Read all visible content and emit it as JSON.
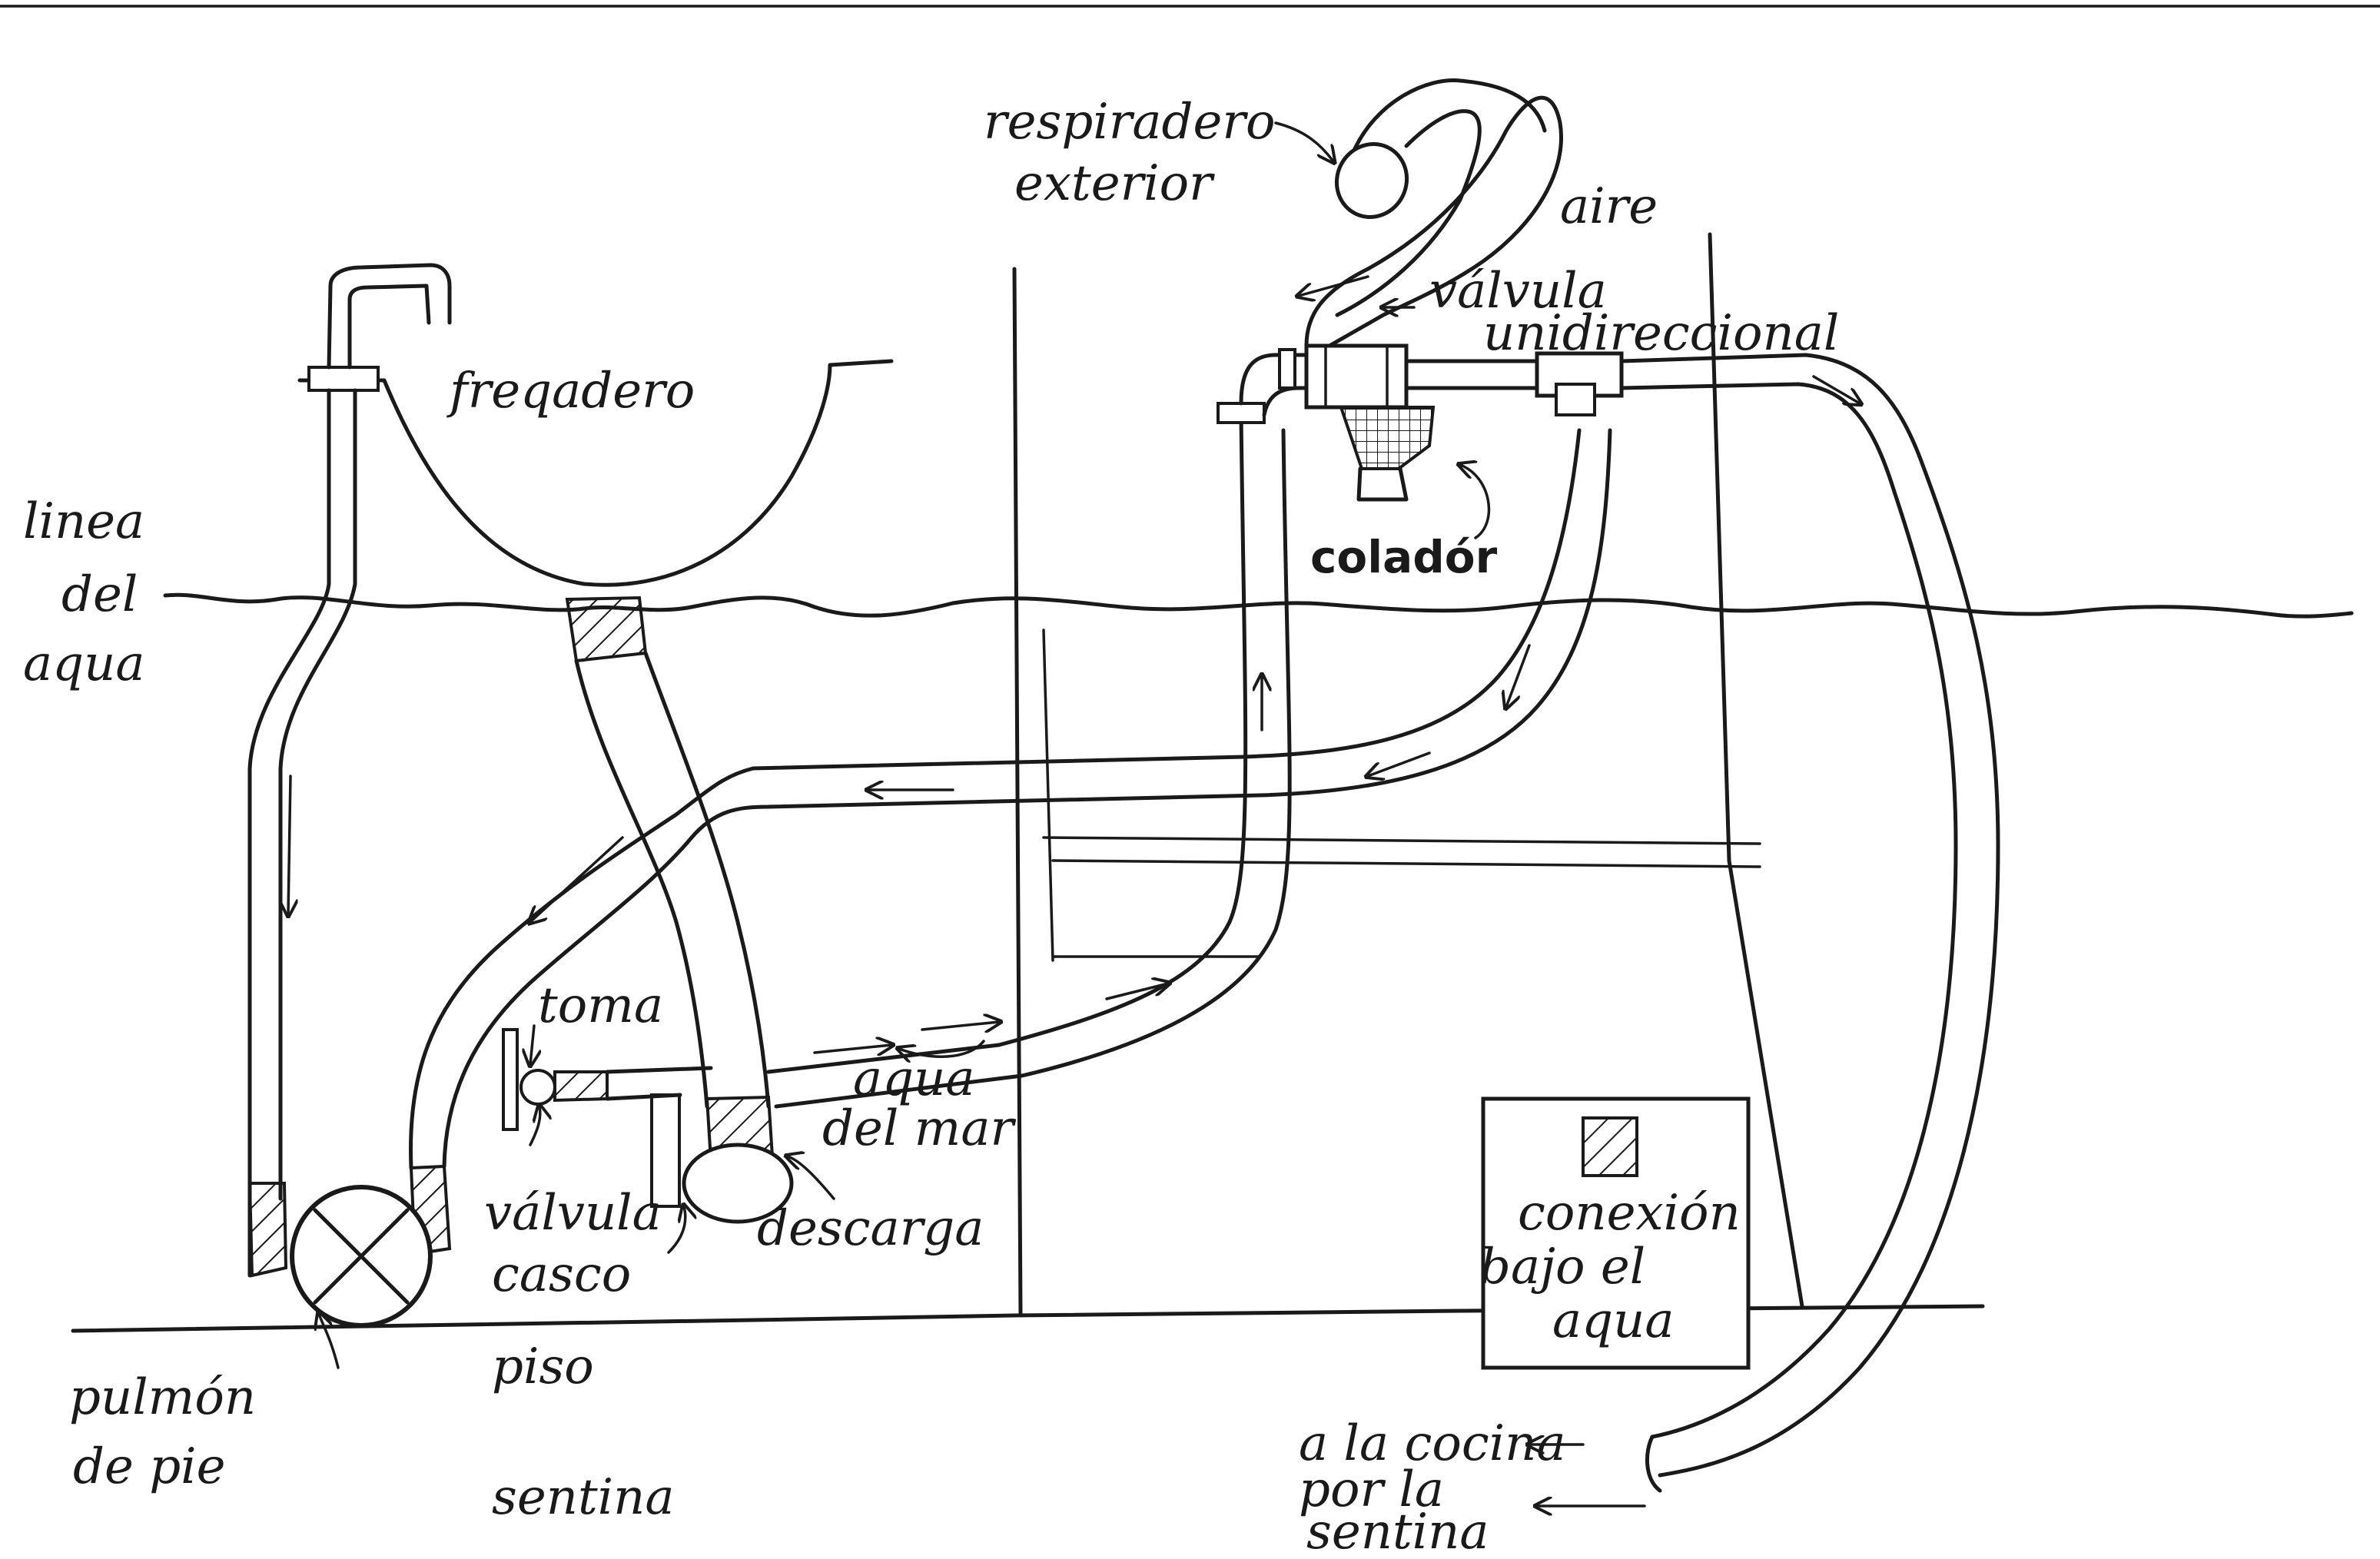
{
  "labels": {
    "respiradero_1": "respiradero",
    "respiradero_2": "exterior",
    "aire": "aire",
    "valvula_uni_1": "válvula",
    "valvula_uni_2": "unidireccional",
    "fregadero": "freqadero",
    "linea_1": "linea",
    "linea_2": "del",
    "linea_3": "aqua",
    "colador": "coladór",
    "toma": "toma",
    "agua_mar_1": "aqua",
    "agua_mar_2": "del mar",
    "valvula_casco_1": "válvula",
    "valvula_casco_2": "casco",
    "descarga": "descarga",
    "pulmon_1": "pulmón",
    "pulmon_2": "de pie",
    "piso": "piso",
    "sentina": "sentina",
    "conexion_1": "conexión",
    "conexion_2": "bajo el",
    "conexion_3": "aqua",
    "cocina_1": "a la cocina",
    "cocina_2": "por la",
    "cocina_3": "sentina"
  },
  "colors": {
    "ink": "#1a1a1a",
    "paper": "#ffffff"
  }
}
